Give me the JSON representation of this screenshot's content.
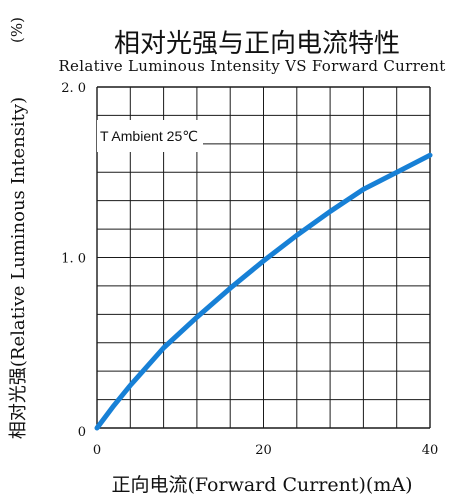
{
  "chart_data": {
    "type": "line",
    "title": "相对光强与正向电流特性",
    "subtitle": "Relative Luminous Intensity VS Forward Current",
    "xlabel": "正向电流(Forward Current)(mA)",
    "ylabel": "相对光强(Relative Luminous Intensity)",
    "ylabel_unit": "(%)",
    "annotation": "T Ambient 25℃",
    "xlim": [
      0,
      40
    ],
    "ylim": [
      0,
      2.0
    ],
    "x_ticks": [
      "0",
      "20",
      "40"
    ],
    "y_ticks": [
      "0",
      "1. 0",
      "2. 0"
    ],
    "x_tick_values": [
      0,
      20,
      40
    ],
    "y_tick_values": [
      0,
      1.0,
      2.0
    ],
    "grid": true,
    "series": [
      {
        "x": [
          0,
          2,
          4,
          8,
          12,
          16,
          20,
          24,
          28,
          32,
          36,
          40
        ],
        "y": [
          0.0,
          0.13,
          0.25,
          0.47,
          0.65,
          0.82,
          0.98,
          1.13,
          1.27,
          1.4,
          1.5,
          1.6
        ]
      }
    ],
    "line_color": "#1780d6"
  }
}
